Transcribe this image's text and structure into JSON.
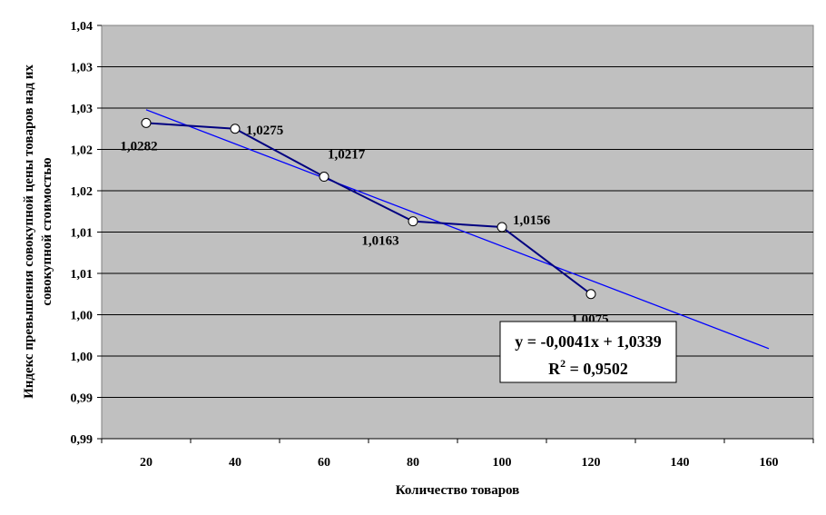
{
  "chart_data": {
    "type": "line",
    "xlabel": "Количество товаров",
    "ylabel": [
      "Индекс превышения совокупной цены товаров над  их",
      "совокупной стоимостью"
    ],
    "x_ticks": [
      "20",
      "40",
      "60",
      "80",
      "100",
      "120",
      "140",
      "160"
    ],
    "y_tick_labels": [
      "0,99",
      "0,99",
      "1,00",
      "1,00",
      "1,01",
      "1,01",
      "1,02",
      "1,02",
      "1,03",
      "1,03",
      "1,04"
    ],
    "ylim": [
      0.99,
      1.04
    ],
    "xlim": [
      10,
      170
    ],
    "grid": true,
    "series": [
      {
        "x": [
          20,
          40,
          60,
          80,
          100,
          120
        ],
        "y": [
          1.0282,
          1.0275,
          1.0217,
          1.0163,
          1.0156,
          1.0075
        ],
        "labels": [
          "1,0282",
          "1,0275",
          "1,0217",
          "1,0163",
          "1,0156",
          "1,0075"
        ]
      }
    ],
    "trendline": {
      "x": [
        20,
        160
      ],
      "y": [
        1.0298,
        1.0009
      ],
      "equation": "y = -0,0041x + 1,0339",
      "r2_label": "R",
      "r2_sup": "2",
      "r2_value": " = 0,9502"
    },
    "colors": {
      "plot_bg": "#c0c0c0",
      "grid": "#000000",
      "series": "#000080",
      "trend": "#0000ff",
      "marker_fill": "#ffffff"
    }
  }
}
